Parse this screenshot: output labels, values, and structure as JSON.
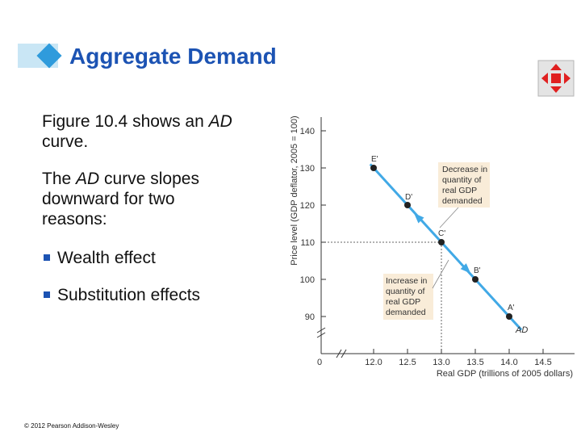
{
  "slide": {
    "title": "Aggregate Demand",
    "para1_pre": "Figure 10.4 shows an ",
    "para1_em": "AD",
    "para1_post": " curve.",
    "para2_pre": "The ",
    "para2_em": "AD",
    "para2_post": " curve slopes downward for two reasons:",
    "bullets": [
      "Wealth effect",
      "Substitution effects"
    ],
    "footer": "© 2012 Pearson Addison-Wesley"
  },
  "colors": {
    "title": "#1c53b3",
    "accent_diamond": "#2f9bdc",
    "curve": "#41a9e6",
    "callout_bg": "#f9ecd8",
    "nav_icon": "#e02020"
  },
  "icons": {
    "nav": "four-way-arrows-icon"
  },
  "chart_data": {
    "type": "line",
    "xlabel": "Real GDP (trillions of 2005 dollars)",
    "ylabel": "Price level (GDP deflator, 2005 = 100)",
    "origin_label": "0",
    "xlim": [
      11.8,
      14.85
    ],
    "ylim": [
      85,
      140
    ],
    "x_ticks": [
      "12.0",
      "12.5",
      "13.0",
      "13.5",
      "14.0",
      "14.5"
    ],
    "y_ticks": [
      "140",
      "130",
      "120",
      "110",
      "100",
      "90"
    ],
    "series": [
      {
        "name": "AD",
        "x": [
          12.0,
          12.5,
          13.0,
          13.5,
          14.0
        ],
        "y": [
          130,
          120,
          110,
          100,
          90
        ]
      }
    ],
    "point_labels": [
      "E'",
      "D'",
      "C'",
      "B'",
      "A'"
    ],
    "callouts": [
      {
        "lines": [
          "Decrease in",
          "quantity of",
          "real GDP",
          "demanded"
        ]
      },
      {
        "lines": [
          "Increase in",
          "quantity of",
          "real GDP",
          "demanded"
        ]
      }
    ]
  }
}
